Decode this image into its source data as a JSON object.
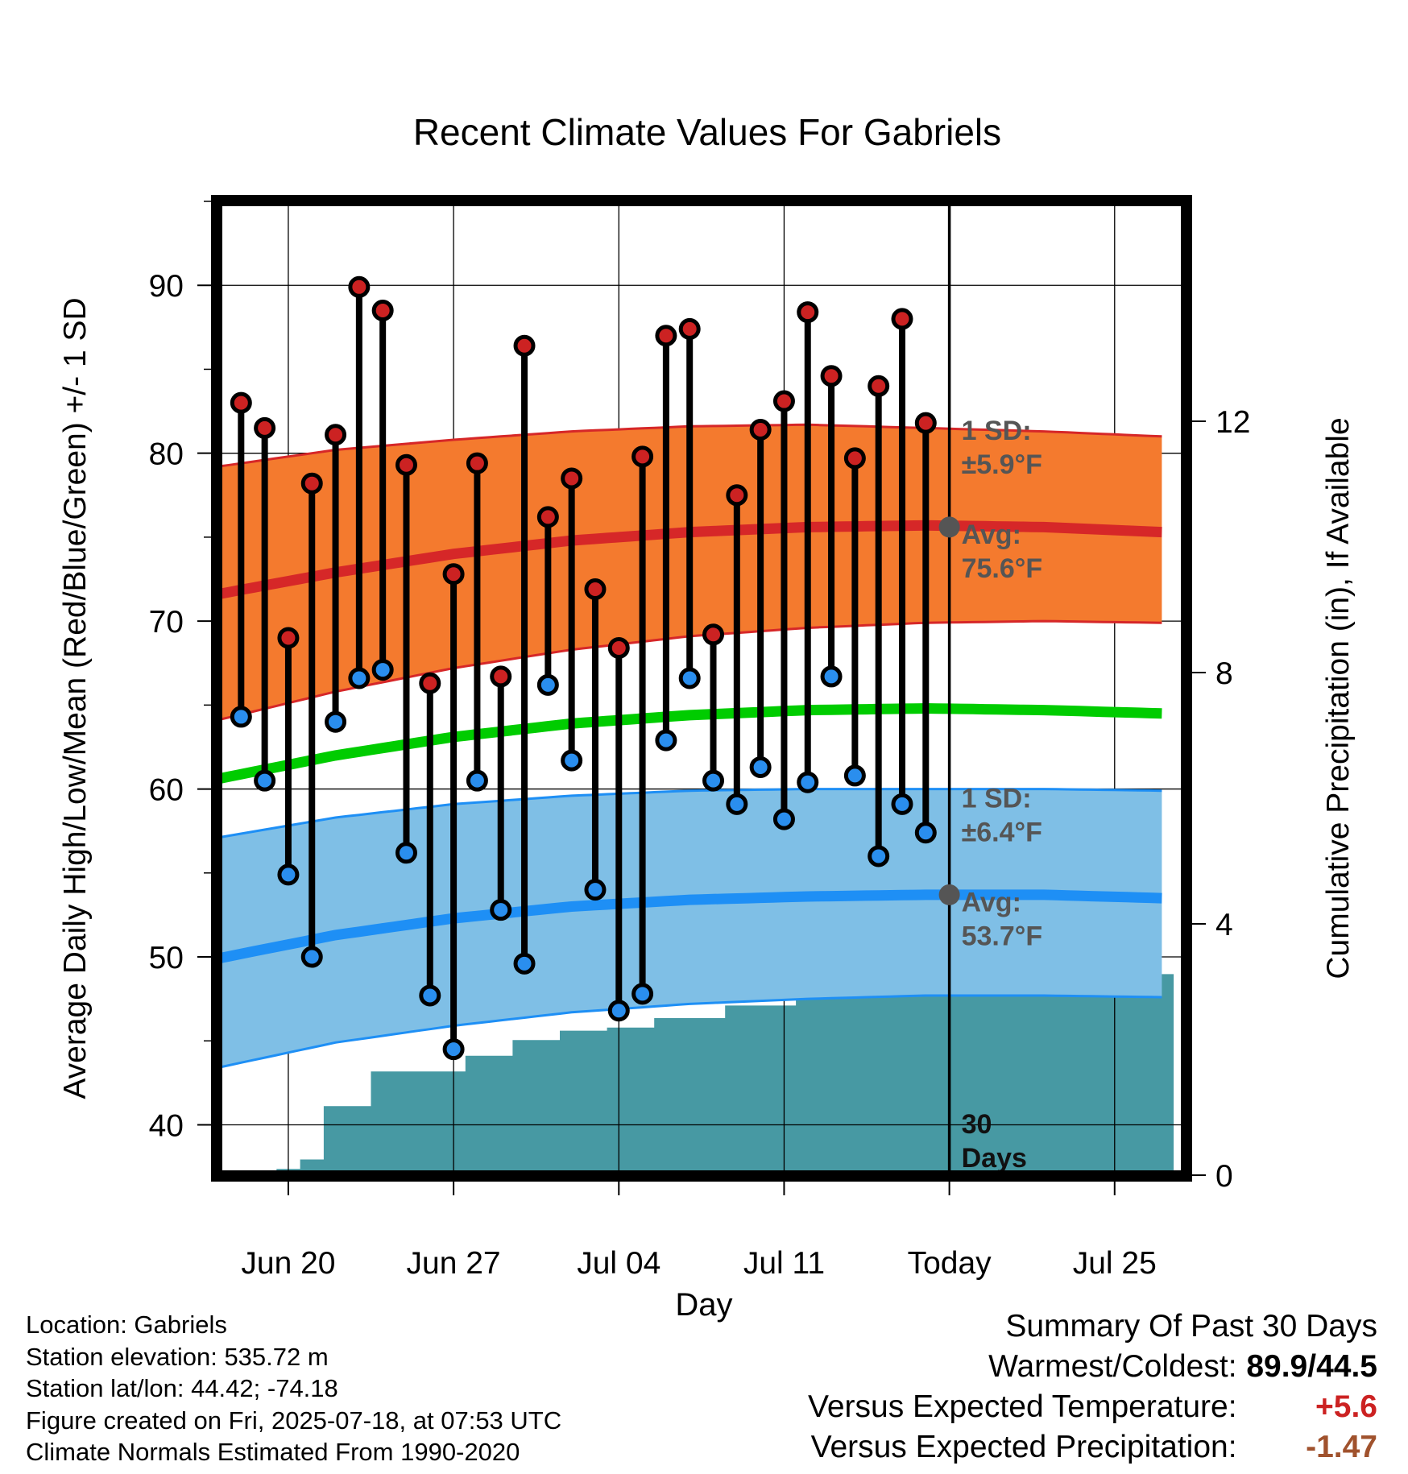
{
  "chart_data": {
    "type": "line",
    "title": "Recent Climate Values For Gabriels",
    "xlabel": "Day",
    "ylabel": "Average Daily High/Low/Mean (Red/Blue/Green) +/- 1 SD",
    "y2label": "Cumulative Precipitation (in), If Available",
    "ylim": [
      37,
      95
    ],
    "y2lim": [
      0,
      15.5
    ],
    "yticks": [
      40,
      50,
      60,
      70,
      80,
      90
    ],
    "y2ticks": [
      0,
      4,
      8,
      12
    ],
    "x_start": "Jun 17",
    "x_end": "Jul 28",
    "today_index": 31,
    "xticks": [
      {
        "index": 3,
        "label": "Jun 20"
      },
      {
        "index": 10,
        "label": "Jun 27"
      },
      {
        "index": 17,
        "label": "Jul 04"
      },
      {
        "index": 24,
        "label": "Jul 11"
      },
      {
        "index": 31,
        "label": "Today"
      },
      {
        "index": 38,
        "label": "Jul 25"
      }
    ],
    "daily_high": [
      83.0,
      81.5,
      69.0,
      78.2,
      81.1,
      89.9,
      88.5,
      79.3,
      66.3,
      72.8,
      79.4,
      66.7,
      86.4,
      76.2,
      78.5,
      71.9,
      68.4,
      79.8,
      87.0,
      87.4,
      69.2,
      77.5,
      81.4,
      83.1,
      88.4,
      84.6,
      79.7,
      84.0,
      88.0,
      81.8
    ],
    "daily_low": [
      64.3,
      60.5,
      54.9,
      50.0,
      64.0,
      66.6,
      67.1,
      56.2,
      47.7,
      44.5,
      60.5,
      52.8,
      49.6,
      66.2,
      61.7,
      54.0,
      46.8,
      47.8,
      62.9,
      66.6,
      60.5,
      59.1,
      61.3,
      58.2,
      60.4,
      66.7,
      60.8,
      56.0,
      59.1,
      57.4
    ],
    "normal_high": {
      "x": [
        0,
        5,
        10,
        15,
        20,
        25,
        30,
        35,
        40
      ],
      "values": [
        71.6,
        72.9,
        74.0,
        74.8,
        75.3,
        75.6,
        75.7,
        75.6,
        75.3
      ]
    },
    "normal_high_sd_band": {
      "x": [
        0,
        5,
        10,
        15,
        20,
        25,
        30,
        35,
        40
      ],
      "upper": [
        79.2,
        80.2,
        80.8,
        81.3,
        81.6,
        81.7,
        81.5,
        81.3,
        81.0
      ],
      "lower": [
        64.1,
        65.8,
        67.2,
        68.3,
        69.1,
        69.6,
        69.9,
        70.0,
        69.9
      ]
    },
    "normal_mean": {
      "x": [
        0,
        5,
        10,
        15,
        20,
        25,
        30,
        35,
        40
      ],
      "values": [
        60.6,
        62.0,
        63.1,
        63.9,
        64.4,
        64.7,
        64.8,
        64.7,
        64.5
      ]
    },
    "normal_low": {
      "x": [
        0,
        5,
        10,
        15,
        20,
        25,
        30,
        35,
        40
      ],
      "values": [
        49.9,
        51.3,
        52.3,
        53.0,
        53.4,
        53.6,
        53.7,
        53.7,
        53.5
      ]
    },
    "normal_low_sd_band": {
      "x": [
        0,
        5,
        10,
        15,
        20,
        25,
        30,
        35,
        40
      ],
      "upper": [
        57.1,
        58.3,
        59.1,
        59.6,
        59.9,
        60.0,
        60.0,
        60.0,
        59.9
      ],
      "lower": [
        43.4,
        44.9,
        45.9,
        46.7,
        47.2,
        47.5,
        47.7,
        47.7,
        47.6
      ]
    },
    "cumulative_precip": [
      0,
      0,
      0,
      0.1,
      0.25,
      1.1,
      1.1,
      1.65,
      1.65,
      1.65,
      1.65,
      1.9,
      1.9,
      2.15,
      2.15,
      2.3,
      2.3,
      2.35,
      2.35,
      2.5,
      2.5,
      2.5,
      2.7,
      2.7,
      2.7,
      2.85,
      2.85,
      2.85,
      2.85,
      3.2,
      3.2,
      3.2,
      3.2,
      3.2,
      3.2,
      3.2,
      3.2,
      3.2,
      3.2,
      3.2,
      3.2
    ],
    "annotations": {
      "high_sd": [
        "1 SD:",
        "±5.9°F"
      ],
      "high_avg": [
        "Avg:",
        "75.6°F"
      ],
      "low_sd": [
        "1 SD:",
        "±6.4°F"
      ],
      "low_avg": [
        "Avg:",
        "53.7°F"
      ],
      "window": [
        "30",
        "Days"
      ]
    },
    "colors": {
      "high_band": "#f47a2e",
      "high_line": "#d62728",
      "low_band": "#7fbfe6",
      "low_line": "#1e8ff5",
      "mean_line": "#00cc00",
      "precip": "#4799a3",
      "high_dot": "#cc2222",
      "low_dot": "#2a8eee",
      "annotation": "#555555"
    }
  },
  "info": {
    "location": "Location: Gabriels",
    "elevation": "Station elevation: 535.72 m",
    "latlon": "Station lat/lon: 44.42; -74.18",
    "created": "Figure created on Fri, 2025-07-18, at 07:53 UTC",
    "normals": "Climate Normals Estimated From 1990-2020"
  },
  "summary": {
    "title": "Summary Of Past 30 Days",
    "warmest_label": "Warmest/Coldest:",
    "warmest_value": "89.9/44.5",
    "temp_label": "Versus Expected Temperature:",
    "temp_value": "+5.6",
    "temp_color": "#cc2222",
    "precip_label": "Versus Expected Precipitation:",
    "precip_value": "-1.47",
    "precip_color": "#a0522d"
  }
}
